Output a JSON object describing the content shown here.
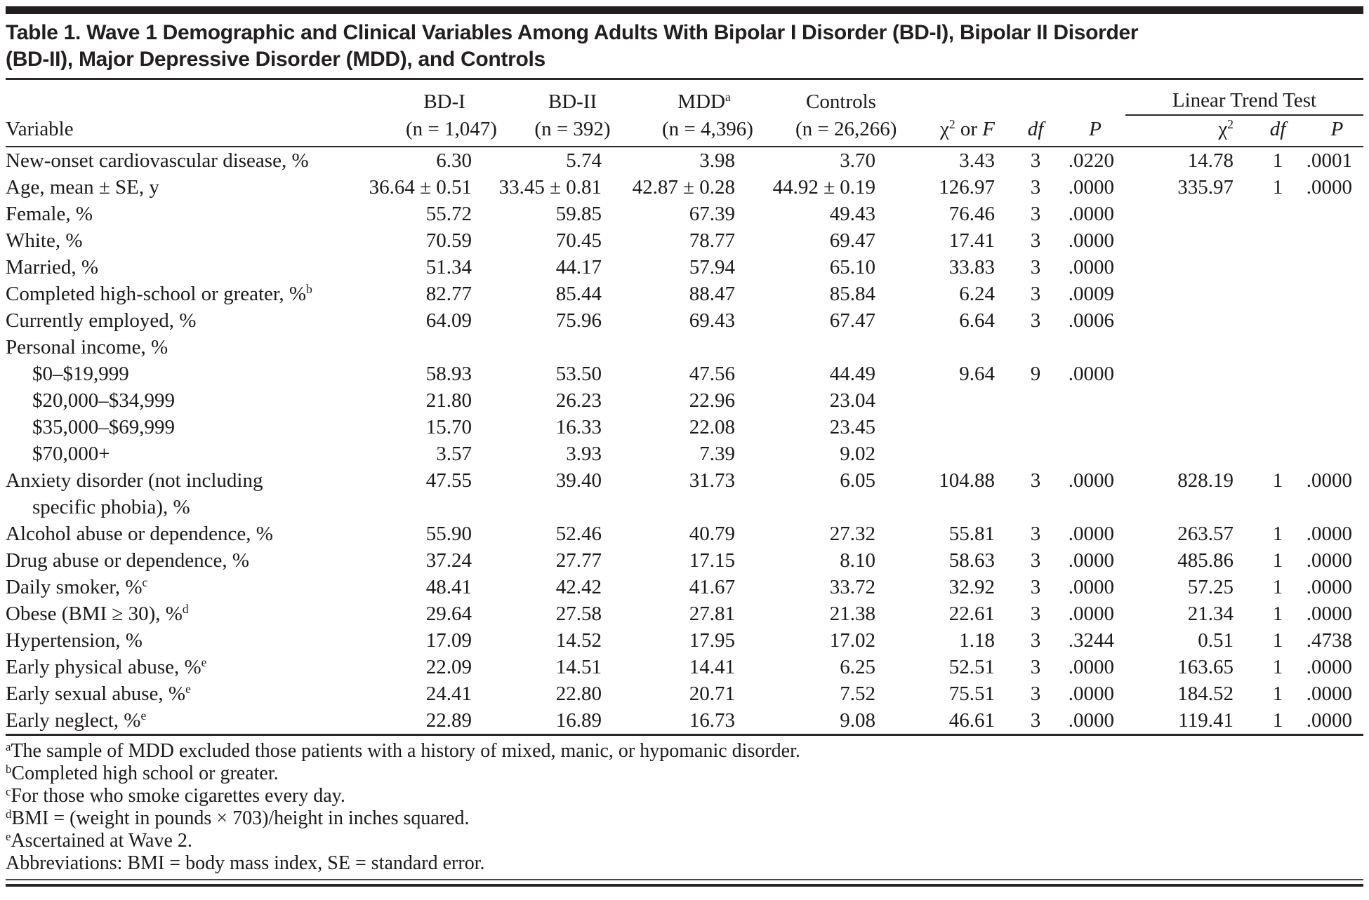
{
  "title_lines": [
    "Table 1. Wave 1 Demographic and Clinical Variables Among Adults With Bipolar I Disorder (BD-I), Bipolar II Disorder",
    "(BD-II), Major Depressive Disorder (MDD), and Controls"
  ],
  "table": {
    "columns": {
      "variable": "Variable",
      "groups": [
        {
          "label": "BD-I",
          "sub": "(n = 1,047)"
        },
        {
          "label": "BD-II",
          "sub": "(n = 392)"
        },
        {
          "label": "MDD",
          "sup": "a",
          "sub": "(n = 4,396)"
        },
        {
          "label": "Controls",
          "sub": "(n = 26,266)"
        }
      ],
      "stats": {
        "chi": "χ",
        "exp": "2",
        "or": " or ",
        "f": "F",
        "df": "df",
        "p": "P"
      },
      "ltt": {
        "title": "Linear Trend Test",
        "chi": "χ",
        "exp": "2",
        "df": "df",
        "p": "P"
      }
    },
    "rows": [
      {
        "label": "New-onset cardiovascular disease, %",
        "cells": [
          "6.30",
          "5.74",
          "3.98",
          "3.70",
          "3.43",
          "3",
          ".0220",
          "14.78",
          "1",
          ".0001"
        ]
      },
      {
        "label": "Age, mean ± SE, y",
        "cells": [
          "36.64 ± 0.51",
          "33.45 ± 0.81",
          "42.87 ± 0.28",
          "44.92 ± 0.19",
          "126.97",
          "3",
          ".0000",
          "335.97",
          "1",
          ".0000"
        ]
      },
      {
        "label": "Female, %",
        "cells": [
          "55.72",
          "59.85",
          "67.39",
          "49.43",
          "76.46",
          "3",
          ".0000",
          "",
          "",
          ""
        ]
      },
      {
        "label": "White, %",
        "cells": [
          "70.59",
          "70.45",
          "78.77",
          "69.47",
          "17.41",
          "3",
          ".0000",
          "",
          "",
          ""
        ]
      },
      {
        "label": "Married, %",
        "cells": [
          "51.34",
          "44.17",
          "57.94",
          "65.10",
          "33.83",
          "3",
          ".0000",
          "",
          "",
          ""
        ]
      },
      {
        "label": "Completed high-school or greater, %",
        "sup": "b",
        "cells": [
          "82.77",
          "85.44",
          "88.47",
          "85.84",
          "6.24",
          "3",
          ".0009",
          "",
          "",
          ""
        ]
      },
      {
        "label": "Currently employed, %",
        "cells": [
          "64.09",
          "75.96",
          "69.43",
          "67.47",
          "6.64",
          "3",
          ".0006",
          "",
          "",
          ""
        ]
      },
      {
        "label": "Personal income, %",
        "cells": [
          "",
          "",
          "",
          "",
          "",
          "",
          "",
          "",
          "",
          ""
        ]
      },
      {
        "label": "$0–$19,999",
        "indent": true,
        "cells": [
          "58.93",
          "53.50",
          "47.56",
          "44.49",
          "9.64",
          "9",
          ".0000",
          "",
          "",
          ""
        ]
      },
      {
        "label": "$20,000–$34,999",
        "indent": true,
        "cells": [
          "21.80",
          "26.23",
          "22.96",
          "23.04",
          "",
          "",
          "",
          "",
          "",
          ""
        ]
      },
      {
        "label": "$35,000–$69,999",
        "indent": true,
        "cells": [
          "15.70",
          "16.33",
          "22.08",
          "23.45",
          "",
          "",
          "",
          "",
          "",
          ""
        ]
      },
      {
        "label": "$70,000+",
        "indent": true,
        "cells": [
          "3.57",
          "3.93",
          "7.39",
          "9.02",
          "",
          "",
          "",
          "",
          "",
          ""
        ]
      },
      {
        "label": "Anxiety disorder (not including",
        "line2": "specific phobia), %",
        "cells": [
          "47.55",
          "39.40",
          "31.73",
          "6.05",
          "104.88",
          "3",
          ".0000",
          "828.19",
          "1",
          ".0000"
        ]
      },
      {
        "label": "Alcohol abuse or dependence, %",
        "cells": [
          "55.90",
          "52.46",
          "40.79",
          "27.32",
          "55.81",
          "3",
          ".0000",
          "263.57",
          "1",
          ".0000"
        ]
      },
      {
        "label": "Drug abuse or dependence, %",
        "cells": [
          "37.24",
          "27.77",
          "17.15",
          "8.10",
          "58.63",
          "3",
          ".0000",
          "485.86",
          "1",
          ".0000"
        ]
      },
      {
        "label": "Daily smoker, %",
        "sup": "c",
        "cells": [
          "48.41",
          "42.42",
          "41.67",
          "33.72",
          "32.92",
          "3",
          ".0000",
          "57.25",
          "1",
          ".0000"
        ]
      },
      {
        "label": "Obese (BMI ≥ 30), %",
        "sup": "d",
        "cells": [
          "29.64",
          "27.58",
          "27.81",
          "21.38",
          "22.61",
          "3",
          ".0000",
          "21.34",
          "1",
          ".0000"
        ]
      },
      {
        "label": "Hypertension, %",
        "cells": [
          "17.09",
          "14.52",
          "17.95",
          "17.02",
          "1.18",
          "3",
          ".3244",
          "0.51",
          "1",
          ".4738"
        ]
      },
      {
        "label": "Early physical abuse, %",
        "sup": "e",
        "cells": [
          "22.09",
          "14.51",
          "14.41",
          "6.25",
          "52.51",
          "3",
          ".0000",
          "163.65",
          "1",
          ".0000"
        ]
      },
      {
        "label": "Early sexual abuse, %",
        "sup": "e",
        "cells": [
          "24.41",
          "22.80",
          "20.71",
          "7.52",
          "75.51",
          "3",
          ".0000",
          "184.52",
          "1",
          ".0000"
        ]
      },
      {
        "label": "Early neglect, %",
        "sup": "e",
        "cells": [
          "22.89",
          "16.89",
          "16.73",
          "9.08",
          "46.61",
          "3",
          ".0000",
          "119.41",
          "1",
          ".0000"
        ]
      }
    ]
  },
  "footnotes": [
    {
      "sup": "a",
      "text": "The sample of MDD excluded those patients with a history of mixed, manic, or hypomanic disorder."
    },
    {
      "sup": "b",
      "text": "Completed high school or greater."
    },
    {
      "sup": "c",
      "text": "For those who smoke cigarettes every day."
    },
    {
      "sup": "d",
      "text": "BMI = (weight in pounds × 703)/height in inches squared."
    },
    {
      "sup": "e",
      "text": "Ascertained at Wave 2."
    },
    {
      "sup": "",
      "text": "Abbreviations: BMI = body mass index, SE = standard error."
    }
  ]
}
